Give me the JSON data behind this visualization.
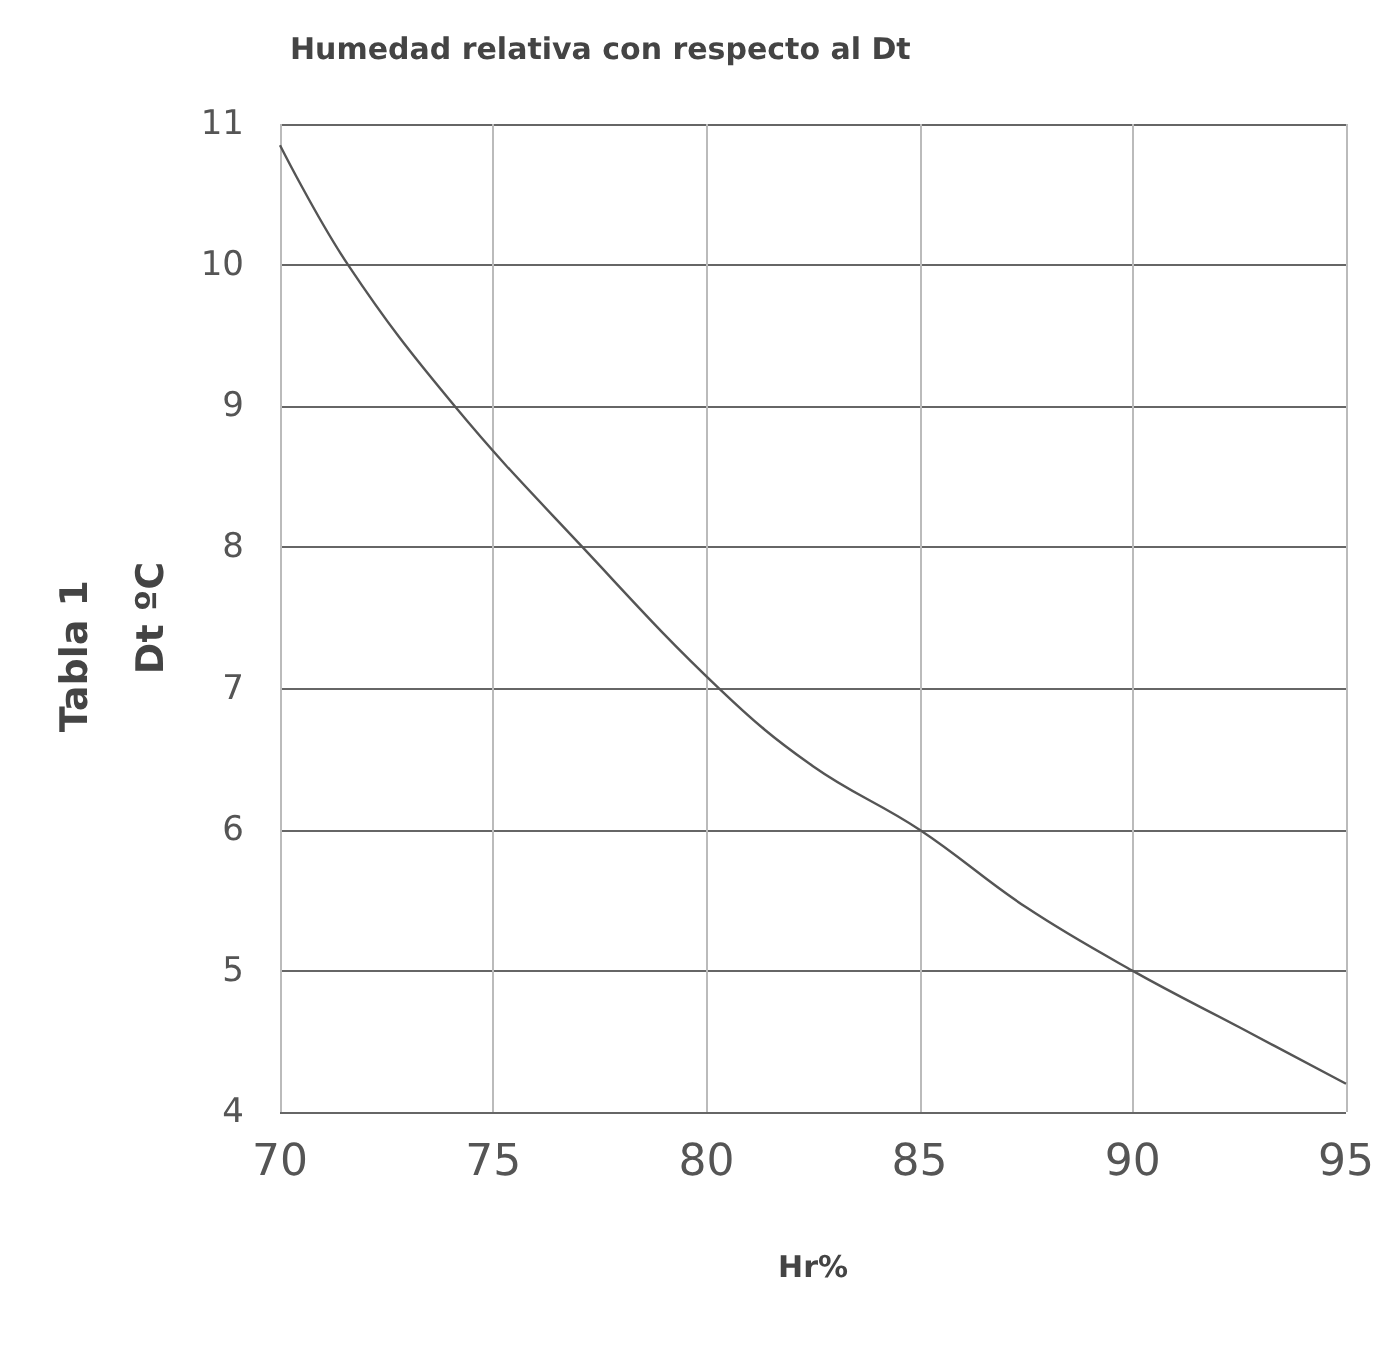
{
  "chart_data": {
    "type": "line",
    "title": "Humedad relativa con respecto al Dt",
    "xlabel": "Hr%",
    "ylabel": "Dt ºC",
    "annotations": [
      "Tabla 1"
    ],
    "x": [
      70,
      71.6,
      74.1,
      77.1,
      80.3,
      82.5,
      85,
      87.5,
      90,
      92.5,
      95
    ],
    "series": [
      {
        "color": "#555555",
        "values": [
          10.85,
          10,
          9,
          8,
          7,
          6.45,
          6,
          5.45,
          5,
          4.6,
          4.2
        ]
      }
    ],
    "xlim": [
      70,
      95
    ],
    "xticks": [
      70,
      75,
      80,
      85,
      90,
      95
    ],
    "ylim": [
      4,
      11
    ],
    "yticks": [
      4,
      5,
      6,
      7,
      8,
      9,
      10,
      11
    ],
    "grid": true,
    "marker": "none",
    "line_style": "solid"
  }
}
